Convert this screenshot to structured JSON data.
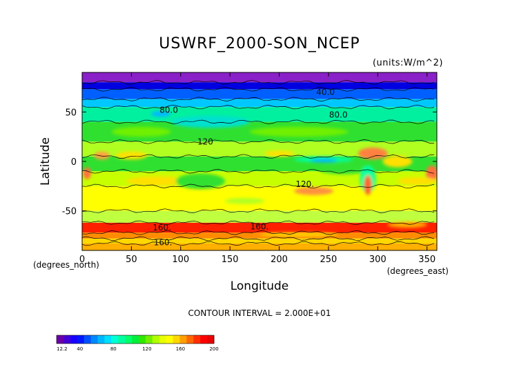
{
  "chart_data": {
    "type": "heatmap",
    "title": "USWRF_2000-SON_NCEP",
    "units": "(units:W/m^2)",
    "xlabel": "Longitude",
    "ylabel": "Latitude",
    "x_unit_note": "(degrees_east)",
    "y_unit_note": "(degrees_north)",
    "xlim": [
      0,
      360
    ],
    "ylim": [
      -90,
      90
    ],
    "x_ticks": [
      0,
      50,
      100,
      150,
      200,
      250,
      300,
      350
    ],
    "y_ticks": [
      -50,
      0,
      50
    ],
    "contour_interval_text": "CONTOUR INTERVAL = 2.000E+01",
    "contour_labels": [
      {
        "text": "40.0",
        "lon": 247,
        "lat": 70
      },
      {
        "text": "80.0",
        "lon": 88,
        "lat": 52
      },
      {
        "text": "80.0",
        "lon": 260,
        "lat": 47
      },
      {
        "text": "120",
        "lon": 125,
        "lat": 20
      },
      {
        "text": "120.",
        "lon": 226,
        "lat": -23
      },
      {
        "text": "160.",
        "lon": 81,
        "lat": -67
      },
      {
        "text": "160.",
        "lon": 180,
        "lat": -66
      },
      {
        "text": "160.",
        "lon": 82,
        "lat": -82
      }
    ],
    "colorbar": {
      "min_label": "12.2",
      "ticks": [
        40,
        80,
        120,
        160,
        200
      ],
      "range": [
        12.2,
        200
      ],
      "colors": [
        "#6a00a8",
        "#4600d0",
        "#1a00ff",
        "#0018ff",
        "#0050ff",
        "#0088ff",
        "#00b8ff",
        "#00e0ff",
        "#00ffd8",
        "#00ffa0",
        "#00ff68",
        "#00f040",
        "#30e800",
        "#70f000",
        "#b0ff00",
        "#e8ff00",
        "#ffff00",
        "#ffd800",
        "#ffa000",
        "#ff6800",
        "#ff3000",
        "#ff0000",
        "#e80000"
      ]
    },
    "bands": [
      {
        "lat_top": 90,
        "lat_bottom": 80,
        "value": 18,
        "color": "#8a20c8"
      },
      {
        "lat_top": 80,
        "lat_bottom": 73,
        "value": 35,
        "color": "#0000e0"
      },
      {
        "lat_top": 73,
        "lat_bottom": 63,
        "value": 50,
        "color": "#0060ff"
      },
      {
        "lat_top": 63,
        "lat_bottom": 55,
        "value": 75,
        "color": "#00c8ff"
      },
      {
        "lat_top": 55,
        "lat_bottom": 40,
        "value": 95,
        "color": "#00f0a0"
      },
      {
        "lat_top": 40,
        "lat_bottom": 20,
        "value": 115,
        "color": "#30e030"
      },
      {
        "lat_top": 20,
        "lat_bottom": 5,
        "value": 140,
        "color": "#b0ff20"
      },
      {
        "lat_top": 5,
        "lat_bottom": -10,
        "value": 125,
        "color": "#30e030"
      },
      {
        "lat_top": -10,
        "lat_bottom": -25,
        "value": 145,
        "color": "#c8ff00"
      },
      {
        "lat_top": -25,
        "lat_bottom": -50,
        "value": 155,
        "color": "#ffff00"
      },
      {
        "lat_top": -50,
        "lat_bottom": -62,
        "value": 140,
        "color": "#c0ff40"
      },
      {
        "lat_top": -62,
        "lat_bottom": -72,
        "value": 190,
        "color": "#ff2000"
      },
      {
        "lat_top": -72,
        "lat_bottom": -78,
        "value": 175,
        "color": "#ff8c00"
      },
      {
        "lat_top": -78,
        "lat_bottom": -83,
        "value": 160,
        "color": "#ffd800"
      },
      {
        "lat_top": -83,
        "lat_bottom": -90,
        "value": 170,
        "color": "#ffb000"
      }
    ],
    "blobs": [
      {
        "lon": 130,
        "lat": 40,
        "rlon": 40,
        "rlat": 6,
        "color": "#00e0d0"
      },
      {
        "lon": 60,
        "lat": 30,
        "rlon": 30,
        "rlat": 5,
        "color": "#70f000"
      },
      {
        "lon": 220,
        "lat": 30,
        "rlon": 50,
        "rlat": 5,
        "color": "#70f000"
      },
      {
        "lon": 80,
        "lat": 48,
        "rlon": 10,
        "rlat": 3,
        "color": "#00b8ff"
      },
      {
        "lon": 20,
        "lat": 6,
        "rlon": 8,
        "rlat": 4,
        "color": "#ffa040"
      },
      {
        "lon": 50,
        "lat": 6,
        "rlon": 16,
        "rlat": 4,
        "color": "#ffe000"
      },
      {
        "lon": 200,
        "lat": 8,
        "rlon": 15,
        "rlat": 3,
        "color": "#ffe000"
      },
      {
        "lon": 295,
        "lat": 8,
        "rlon": 15,
        "rlat": 6,
        "color": "#ff8040"
      },
      {
        "lon": 320,
        "lat": 0,
        "rlon": 15,
        "rlat": 6,
        "color": "#ffe000"
      },
      {
        "lon": 245,
        "lat": 2,
        "rlon": 30,
        "rlat": 3,
        "color": "#00ffa0"
      },
      {
        "lon": 245,
        "lat": 1,
        "rlon": 14,
        "rlat": 2,
        "color": "#00b8ff"
      },
      {
        "lon": 265,
        "lat": -8,
        "rlon": 25,
        "rlat": 5,
        "color": "#30e030"
      },
      {
        "lon": 290,
        "lat": -18,
        "rlon": 8,
        "rlat": 14,
        "color": "#00ffa0"
      },
      {
        "lon": 290,
        "lat": -24,
        "rlon": 4,
        "rlat": 10,
        "color": "#ff6030"
      },
      {
        "lon": 355,
        "lat": -12,
        "rlon": 6,
        "rlat": 8,
        "color": "#ff7040"
      },
      {
        "lon": 5,
        "lat": -12,
        "rlon": 4,
        "rlat": 6,
        "color": "#ff7040"
      },
      {
        "lon": 235,
        "lat": -30,
        "rlon": 20,
        "rlat": 4,
        "color": "#ff9040"
      },
      {
        "lon": 340,
        "lat": -20,
        "rlon": 20,
        "rlat": 4,
        "color": "#ffe000"
      },
      {
        "lon": 75,
        "lat": -20,
        "rlon": 30,
        "rlat": 5,
        "color": "#ffe000"
      },
      {
        "lon": 120,
        "lat": -20,
        "rlon": 25,
        "rlat": 8,
        "color": "#30e030"
      },
      {
        "lon": 165,
        "lat": -40,
        "rlon": 20,
        "rlat": 3,
        "color": "#b0ff20"
      },
      {
        "lon": 330,
        "lat": -64,
        "rlon": 20,
        "rlat": 3,
        "color": "#ffb000"
      },
      {
        "lon": 220,
        "lat": -74,
        "rlon": 40,
        "rlat": 2,
        "color": "#ffd800"
      }
    ]
  }
}
